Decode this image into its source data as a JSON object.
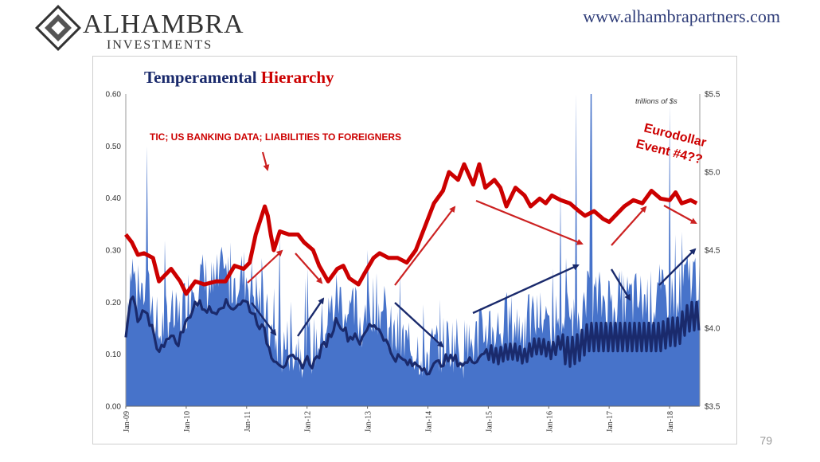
{
  "header": {
    "logo_name": "ALHAMBRA",
    "logo_sub": "INVESTMENTS",
    "url": "www.alhambrapartners.com"
  },
  "page_number": "79",
  "colors": {
    "red_line": "#cc0000",
    "navy_line": "#1a2a6c",
    "blue_area": "#3d6bc7",
    "arrows_red": "#cc2222",
    "arrows_navy": "#1a2a6c"
  },
  "chart_data": {
    "type": "line",
    "title_part1": "Temperamental ",
    "title_part2": "Hierarchy",
    "right_axis_unit": "trillions of $s",
    "annotation_main": "TIC; US BANKING DATA; LIABILITIES TO FOREIGNERS",
    "annotation_event_line1": "Eurodollar",
    "annotation_event_line2": "Event #4??",
    "x_ticks": [
      "Jan-09",
      "Jan-10",
      "Jan-11",
      "Jan-12",
      "Jan-13",
      "Jan-14",
      "Jan-15",
      "Jan-16",
      "Jan-17",
      "Jan-18"
    ],
    "left_ticks": [
      "0.00",
      "0.10",
      "0.20",
      "0.30",
      "0.40",
      "0.50",
      "0.60"
    ],
    "right_ticks": [
      "$3.5",
      "$4.0",
      "$4.5",
      "$5.0",
      "$5.5"
    ],
    "ylim_left": [
      0,
      0.6
    ],
    "ylim_right": [
      3.5,
      5.5
    ],
    "xlim": [
      2009.0,
      2018.5
    ],
    "series": [
      {
        "axis": "right",
        "points": [
          [
            2009.0,
            4.6
          ],
          [
            2009.1,
            4.55
          ],
          [
            2009.2,
            4.47
          ],
          [
            2009.3,
            4.48
          ],
          [
            2009.45,
            4.45
          ],
          [
            2009.55,
            4.3
          ],
          [
            2009.75,
            4.38
          ],
          [
            2009.9,
            4.3
          ],
          [
            2010.0,
            4.22
          ],
          [
            2010.15,
            4.3
          ],
          [
            2010.3,
            4.28
          ],
          [
            2010.5,
            4.3
          ],
          [
            2010.65,
            4.3
          ],
          [
            2010.8,
            4.4
          ],
          [
            2010.95,
            4.38
          ],
          [
            2011.05,
            4.42
          ],
          [
            2011.15,
            4.6
          ],
          [
            2011.3,
            4.78
          ],
          [
            2011.35,
            4.72
          ],
          [
            2011.4,
            4.6
          ],
          [
            2011.45,
            4.5
          ],
          [
            2011.55,
            4.62
          ],
          [
            2011.7,
            4.6
          ],
          [
            2011.85,
            4.6
          ],
          [
            2011.95,
            4.55
          ],
          [
            2012.1,
            4.5
          ],
          [
            2012.2,
            4.4
          ],
          [
            2012.35,
            4.3
          ],
          [
            2012.5,
            4.38
          ],
          [
            2012.6,
            4.4
          ],
          [
            2012.7,
            4.32
          ],
          [
            2012.85,
            4.28
          ],
          [
            2012.95,
            4.35
          ],
          [
            2013.1,
            4.45
          ],
          [
            2013.2,
            4.48
          ],
          [
            2013.35,
            4.45
          ],
          [
            2013.5,
            4.45
          ],
          [
            2013.65,
            4.42
          ],
          [
            2013.8,
            4.5
          ],
          [
            2013.95,
            4.65
          ],
          [
            2014.1,
            4.8
          ],
          [
            2014.25,
            4.88
          ],
          [
            2014.35,
            5.0
          ],
          [
            2014.5,
            4.95
          ],
          [
            2014.6,
            5.05
          ],
          [
            2014.75,
            4.92
          ],
          [
            2014.85,
            5.05
          ],
          [
            2014.95,
            4.9
          ],
          [
            2015.1,
            4.95
          ],
          [
            2015.2,
            4.9
          ],
          [
            2015.3,
            4.78
          ],
          [
            2015.45,
            4.9
          ],
          [
            2015.6,
            4.85
          ],
          [
            2015.7,
            4.78
          ],
          [
            2015.85,
            4.83
          ],
          [
            2015.95,
            4.8
          ],
          [
            2016.05,
            4.85
          ],
          [
            2016.2,
            4.82
          ],
          [
            2016.35,
            4.8
          ],
          [
            2016.5,
            4.75
          ],
          [
            2016.6,
            4.72
          ],
          [
            2016.75,
            4.75
          ],
          [
            2016.9,
            4.7
          ],
          [
            2017.0,
            4.68
          ],
          [
            2017.1,
            4.72
          ],
          [
            2017.25,
            4.78
          ],
          [
            2017.4,
            4.82
          ],
          [
            2017.55,
            4.8
          ],
          [
            2017.7,
            4.88
          ],
          [
            2017.85,
            4.83
          ],
          [
            2018.0,
            4.82
          ],
          [
            2018.1,
            4.87
          ],
          [
            2018.2,
            4.8
          ],
          [
            2018.35,
            4.82
          ],
          [
            2018.45,
            4.8
          ]
        ]
      },
      {
        "axis": "left",
        "points": [
          [
            2009.0,
            0.13
          ],
          [
            2009.1,
            0.22
          ],
          [
            2009.2,
            0.16
          ],
          [
            2009.3,
            0.18
          ],
          [
            2009.45,
            0.15
          ],
          [
            2009.55,
            0.1
          ],
          [
            2009.7,
            0.14
          ],
          [
            2009.85,
            0.12
          ],
          [
            2010.0,
            0.16
          ],
          [
            2010.15,
            0.2
          ],
          [
            2010.3,
            0.19
          ],
          [
            2010.45,
            0.18
          ],
          [
            2010.6,
            0.2
          ],
          [
            2010.75,
            0.19
          ],
          [
            2010.9,
            0.2
          ],
          [
            2011.0,
            0.2
          ],
          [
            2011.1,
            0.18
          ],
          [
            2011.2,
            0.16
          ],
          [
            2011.3,
            0.14
          ],
          [
            2011.4,
            0.1
          ],
          [
            2011.5,
            0.09
          ],
          [
            2011.6,
            0.08
          ],
          [
            2011.75,
            0.09
          ],
          [
            2011.9,
            0.08
          ],
          [
            2012.0,
            0.09
          ],
          [
            2012.1,
            0.08
          ],
          [
            2012.2,
            0.1
          ],
          [
            2012.3,
            0.12
          ],
          [
            2012.4,
            0.14
          ],
          [
            2012.5,
            0.17
          ],
          [
            2012.6,
            0.15
          ],
          [
            2012.7,
            0.13
          ],
          [
            2012.8,
            0.14
          ],
          [
            2012.9,
            0.12
          ],
          [
            2013.0,
            0.15
          ],
          [
            2013.1,
            0.16
          ],
          [
            2013.25,
            0.14
          ],
          [
            2013.4,
            0.1
          ],
          [
            2013.55,
            0.09
          ],
          [
            2013.7,
            0.08
          ],
          [
            2013.85,
            0.08
          ],
          [
            2014.0,
            0.07
          ],
          [
            2014.15,
            0.08
          ],
          [
            2014.3,
            0.09
          ],
          [
            2014.45,
            0.09
          ],
          [
            2014.6,
            0.08
          ],
          [
            2014.75,
            0.09
          ],
          [
            2014.9,
            0.1
          ],
          [
            2015.0,
            0.12
          ],
          [
            2015.15,
            0.11
          ],
          [
            2015.3,
            0.12
          ],
          [
            2015.45,
            0.12
          ],
          [
            2015.6,
            0.11
          ],
          [
            2015.75,
            0.13
          ],
          [
            2015.9,
            0.13
          ],
          [
            2016.05,
            0.12
          ],
          [
            2016.2,
            0.14
          ],
          [
            2016.35,
            0.13
          ],
          [
            2016.5,
            0.14
          ],
          [
            2016.65,
            0.16
          ],
          [
            2016.8,
            0.16
          ],
          [
            2016.95,
            0.16
          ],
          [
            2017.1,
            0.16
          ],
          [
            2017.25,
            0.16
          ],
          [
            2017.4,
            0.16
          ],
          [
            2017.55,
            0.16
          ],
          [
            2017.7,
            0.16
          ],
          [
            2017.85,
            0.16
          ],
          [
            2018.0,
            0.17
          ],
          [
            2018.15,
            0.17
          ],
          [
            2018.25,
            0.19
          ],
          [
            2018.35,
            0.2
          ],
          [
            2018.45,
            0.2
          ]
        ]
      }
    ]
  }
}
